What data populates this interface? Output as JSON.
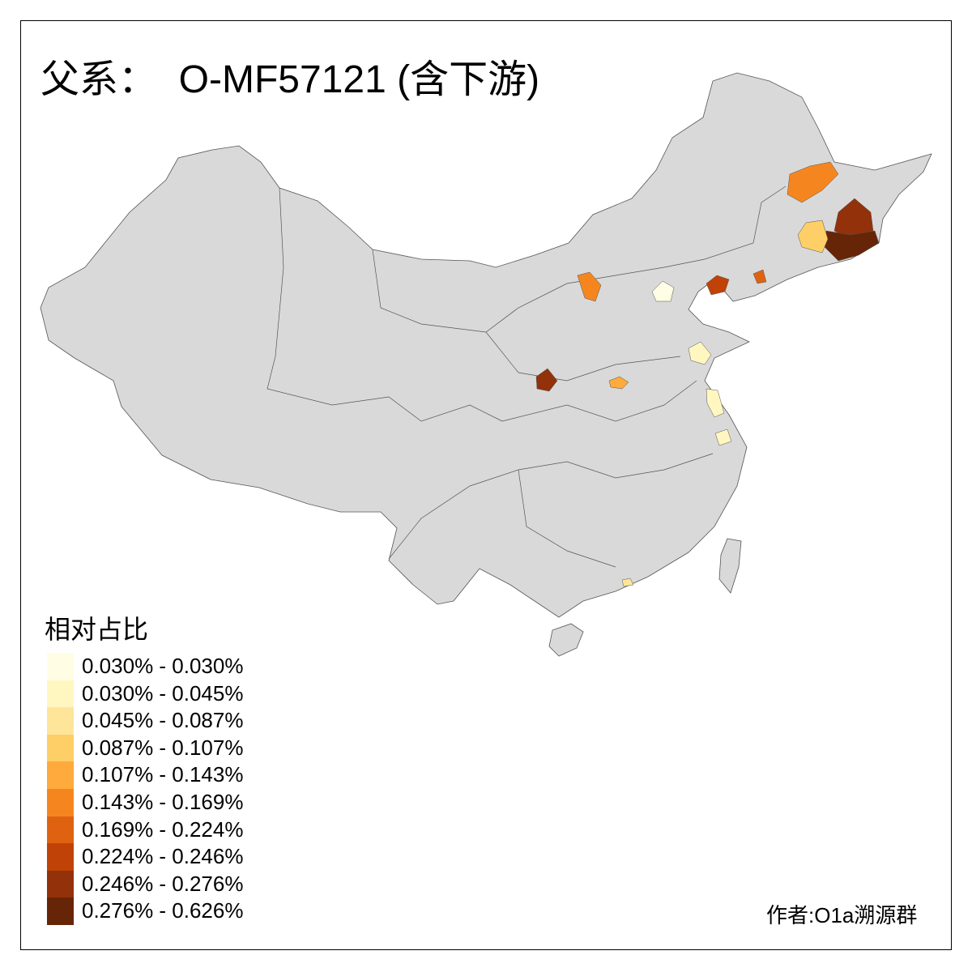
{
  "title": "父系：  O-MF57121 (含下游)",
  "legend": {
    "title": "相对占比",
    "items": [
      {
        "label": "0.030% - 0.030%",
        "color": "#fffde4"
      },
      {
        "label": "0.030% - 0.045%",
        "color": "#fff6c0"
      },
      {
        "label": "0.045% - 0.087%",
        "color": "#fee59a"
      },
      {
        "label": "0.087% - 0.107%",
        "color": "#fecf66"
      },
      {
        "label": "0.107% - 0.143%",
        "color": "#feaa3c"
      },
      {
        "label": "0.143% - 0.169%",
        "color": "#f5861f"
      },
      {
        "label": "0.169% - 0.224%",
        "color": "#df6211"
      },
      {
        "label": "0.224% - 0.246%",
        "color": "#c04206"
      },
      {
        "label": "0.246% - 0.276%",
        "color": "#92310a"
      },
      {
        "label": "0.276% - 0.626%",
        "color": "#662506"
      }
    ]
  },
  "author": "作者:O1a溯源群",
  "colors": {
    "land": "#d9d9d9",
    "border": "#555555"
  }
}
